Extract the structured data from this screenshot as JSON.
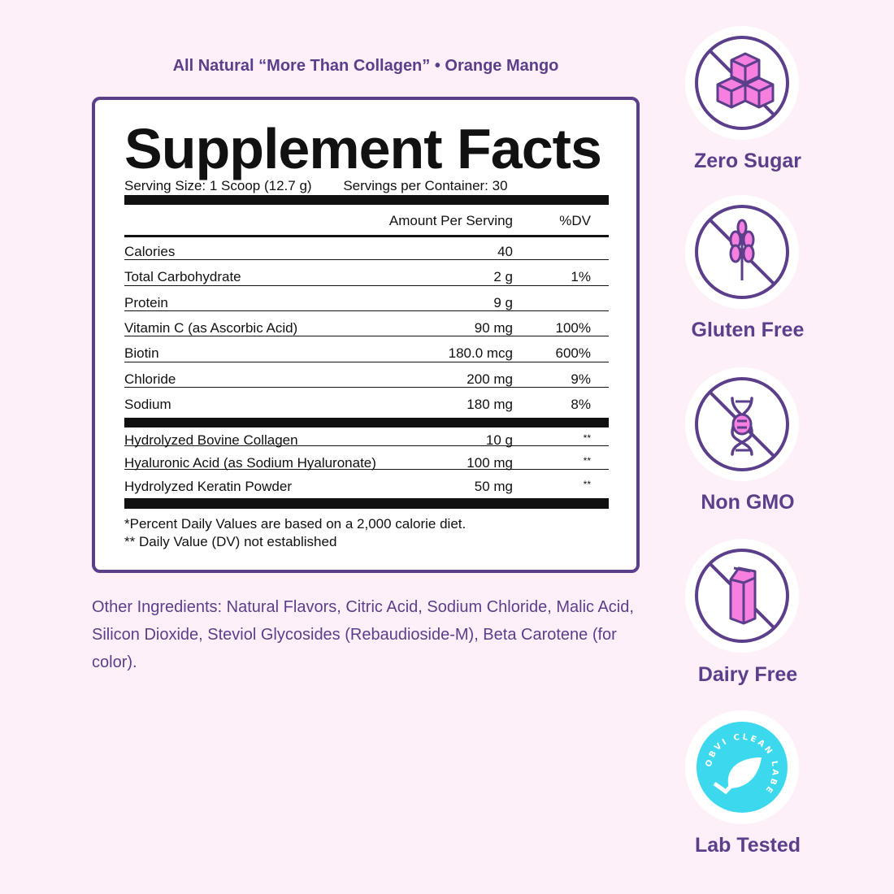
{
  "subtitle": "All Natural “More Than Collagen” • Orange Mango",
  "facts": {
    "title": "Supplement Facts",
    "serving_size": "Serving Size: 1 Scoop (12.7 g)",
    "servings_per_container": "Servings per Container: 30",
    "header_amount": "Amount Per Serving",
    "header_dv": "%DV",
    "nutrients": [
      {
        "name": "Calories",
        "amount": "40",
        "dv": ""
      },
      {
        "name": "Total Carbohydrate",
        "amount": "2 g",
        "dv": "1%"
      },
      {
        "name": "Protein",
        "amount": "9 g",
        "dv": ""
      },
      {
        "name": "Vitamin C (as Ascorbic Acid)",
        "amount": "90 mg",
        "dv": "100%"
      },
      {
        "name": "Biotin",
        "amount": "180.0 mcg",
        "dv": "600%"
      },
      {
        "name": "Chloride",
        "amount": "200 mg",
        "dv": "9%"
      },
      {
        "name": "Sodium",
        "amount": "180 mg",
        "dv": "8%"
      }
    ],
    "other": [
      {
        "name": "Hydrolyzed Bovine Collagen",
        "amount": "10 g",
        "dv": "**"
      },
      {
        "name": "Hyaluronic Acid (as Sodium Hyaluronate)",
        "amount": "100 mg",
        "dv": "**"
      },
      {
        "name": "Hydrolyzed Keratin Powder",
        "amount": "50 mg",
        "dv": "**"
      }
    ],
    "footnote1": "*Percent Daily Values are based on a 2,000 calorie diet.",
    "footnote2": "** Daily Value (DV) not established"
  },
  "other_ingredients": "Other Ingredients: Natural Flavors, Citric Acid, Sodium Chloride, Malic Acid, Silicon Dioxide, Steviol Glycosides (Rebaudioside-M), Beta Carotene (for color).",
  "badges": [
    {
      "label": "Zero Sugar",
      "icon": "sugar-cubes-icon"
    },
    {
      "label": "Gluten Free",
      "icon": "wheat-icon"
    },
    {
      "label": "Non GMO",
      "icon": "dna-icon"
    },
    {
      "label": "Dairy Free",
      "icon": "milk-carton-icon"
    },
    {
      "label": "Lab Tested",
      "icon": "obvi-clean-label-icon",
      "seal_text": "OBVI CLEAN LABEL"
    }
  ],
  "colors": {
    "purple": "#5b3f8a",
    "pink": "#f77fe0",
    "cyan": "#3cd9ee",
    "background": "#fdf0f9"
  }
}
